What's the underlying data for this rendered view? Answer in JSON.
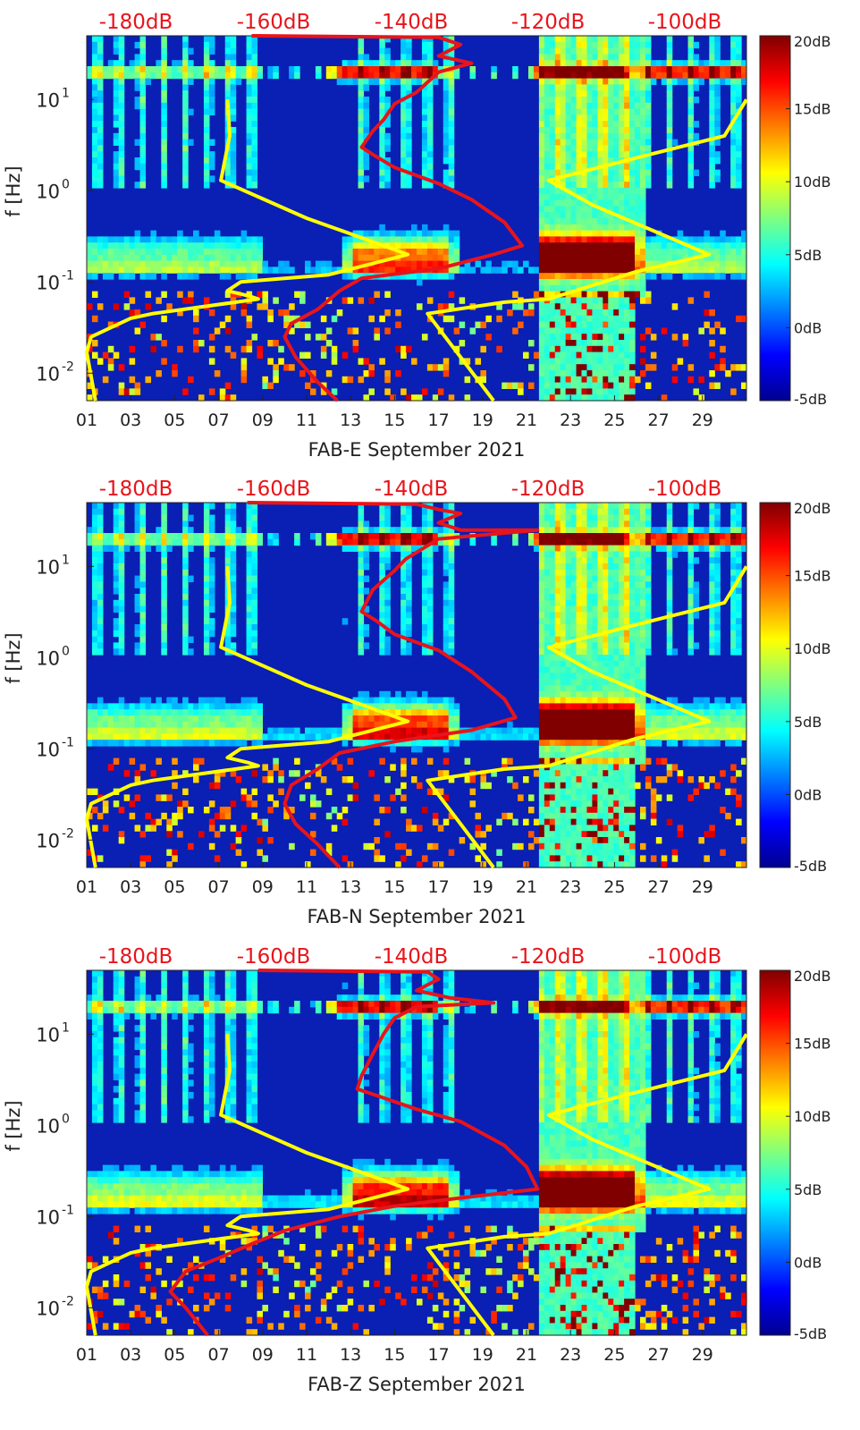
{
  "chart_data": [
    {
      "type": "heatmap",
      "station": "FAB-E",
      "xlabel": "FAB-E September 2021",
      "ylabel": "f [Hz]",
      "x_ticks": [
        "01",
        "03",
        "05",
        "07",
        "09",
        "11",
        "13",
        "15",
        "17",
        "19",
        "21",
        "23",
        "25",
        "27",
        "29"
      ],
      "y_ticks": [
        "10^-2",
        "10^-1",
        "10^0",
        "10^1"
      ],
      "ylim_hz": [
        0.005,
        50
      ],
      "xlim_day": [
        1,
        31
      ],
      "top_axis_ticks": [
        "-180dB",
        "-160dB",
        "-140dB",
        "-120dB",
        "-100dB"
      ],
      "colorbar_ticks": [
        "20dB",
        "15dB",
        "10dB",
        "5dB",
        "0dB",
        "-5dB"
      ],
      "clim_db": [
        -5,
        20
      ],
      "band_scale": 1.0,
      "series": [
        {
          "name": "yellow reference curve (left)",
          "color": "#ffff00",
          "points_day_hz": [
            [
              7.4,
              10
            ],
            [
              7.5,
              4
            ],
            [
              7.1,
              1.3
            ],
            [
              11,
              0.5
            ],
            [
              14.5,
              0.25
            ],
            [
              15.6,
              0.2
            ],
            [
              12,
              0.12
            ],
            [
              8,
              0.1
            ],
            [
              7.4,
              0.08
            ],
            [
              8.4,
              0.07
            ],
            [
              8.8,
              0.065
            ],
            [
              4,
              0.045
            ],
            [
              3,
              0.04
            ],
            [
              1.2,
              0.025
            ],
            [
              1.0,
              0.017
            ],
            [
              1.4,
              0.005
            ]
          ]
        },
        {
          "name": "yellow reference curve (right)",
          "color": "#ffff00",
          "points_day_hz": [
            [
              31,
              10
            ],
            [
              30,
              4
            ],
            [
              26,
              2.3
            ],
            [
              22,
              1.3
            ],
            [
              24,
              0.7
            ],
            [
              29.3,
              0.2
            ],
            [
              26,
              0.13
            ],
            [
              22,
              0.065
            ],
            [
              20,
              0.06
            ],
            [
              16.5,
              0.045
            ],
            [
              19.5,
              0.005
            ]
          ]
        },
        {
          "name": "red PSD curve",
          "color": "#e8141b",
          "points_day_hz": [
            [
              8.5,
              50
            ],
            [
              17,
              48
            ],
            [
              18,
              40
            ],
            [
              17,
              30
            ],
            [
              18.5,
              25
            ],
            [
              17,
              20
            ],
            [
              16,
              12
            ],
            [
              15,
              9
            ],
            [
              14.5,
              6
            ],
            [
              14,
              4.5
            ],
            [
              13.5,
              3
            ],
            [
              14,
              2.5
            ],
            [
              15,
              1.8
            ],
            [
              17,
              1.2
            ],
            [
              18.5,
              0.8
            ],
            [
              20,
              0.45
            ],
            [
              20.8,
              0.25
            ],
            [
              19.5,
              0.2
            ],
            [
              17,
              0.14
            ],
            [
              13.5,
              0.11
            ],
            [
              12.5,
              0.08
            ],
            [
              11.5,
              0.05
            ],
            [
              10.3,
              0.035
            ],
            [
              10,
              0.025
            ],
            [
              10.5,
              0.015
            ],
            [
              11.5,
              0.008
            ],
            [
              12.4,
              0.005
            ]
          ]
        }
      ]
    },
    {
      "type": "heatmap",
      "station": "FAB-N",
      "xlabel": "FAB-N September 2021",
      "ylabel": "f [Hz]",
      "x_ticks": [
        "01",
        "03",
        "05",
        "07",
        "09",
        "11",
        "13",
        "15",
        "17",
        "19",
        "21",
        "23",
        "25",
        "27",
        "29"
      ],
      "y_ticks": [
        "10^-2",
        "10^-1",
        "10^0",
        "10^1"
      ],
      "ylim_hz": [
        0.005,
        50
      ],
      "xlim_day": [
        1,
        31
      ],
      "top_axis_ticks": [
        "-180dB",
        "-160dB",
        "-140dB",
        "-120dB",
        "-100dB"
      ],
      "colorbar_ticks": [
        "20dB",
        "15dB",
        "10dB",
        "5dB",
        "0dB",
        "-5dB"
      ],
      "clim_db": [
        -5,
        20
      ],
      "band_scale": 1.1,
      "series": [
        {
          "name": "yellow reference curve (left)",
          "color": "#ffff00",
          "points_day_hz": [
            [
              7.4,
              10
            ],
            [
              7.5,
              4
            ],
            [
              7.1,
              1.3
            ],
            [
              11,
              0.5
            ],
            [
              14.5,
              0.25
            ],
            [
              15.6,
              0.2
            ],
            [
              12,
              0.12
            ],
            [
              8,
              0.1
            ],
            [
              7.4,
              0.08
            ],
            [
              8.4,
              0.07
            ],
            [
              8.8,
              0.065
            ],
            [
              4,
              0.045
            ],
            [
              3,
              0.04
            ],
            [
              1.2,
              0.025
            ],
            [
              1.0,
              0.017
            ],
            [
              1.4,
              0.005
            ]
          ]
        },
        {
          "name": "yellow reference curve (right)",
          "color": "#ffff00",
          "points_day_hz": [
            [
              31,
              10
            ],
            [
              30,
              4
            ],
            [
              26,
              2.3
            ],
            [
              22,
              1.3
            ],
            [
              24,
              0.7
            ],
            [
              29.3,
              0.2
            ],
            [
              26,
              0.13
            ],
            [
              22,
              0.065
            ],
            [
              20,
              0.06
            ],
            [
              16.5,
              0.045
            ],
            [
              19.5,
              0.005
            ]
          ]
        },
        {
          "name": "red PSD curve",
          "color": "#e8141b",
          "points_day_hz": [
            [
              8.3,
              50
            ],
            [
              16,
              48
            ],
            [
              17,
              42
            ],
            [
              18,
              38
            ],
            [
              17,
              30
            ],
            [
              18,
              25
            ],
            [
              21.5,
              25
            ],
            [
              17,
              20
            ],
            [
              15.5,
              12
            ],
            [
              15,
              9
            ],
            [
              14,
              5.5
            ],
            [
              13.5,
              3.2
            ],
            [
              14.2,
              2.5
            ],
            [
              15,
              1.8
            ],
            [
              17,
              1.2
            ],
            [
              18.5,
              0.7
            ],
            [
              20,
              0.35
            ],
            [
              20.5,
              0.22
            ],
            [
              18.5,
              0.16
            ],
            [
              15,
              0.12
            ],
            [
              12.5,
              0.09
            ],
            [
              11.5,
              0.06
            ],
            [
              10.3,
              0.04
            ],
            [
              10,
              0.025
            ],
            [
              10.5,
              0.015
            ],
            [
              11.5,
              0.009
            ],
            [
              12.5,
              0.005
            ]
          ]
        }
      ]
    },
    {
      "type": "heatmap",
      "station": "FAB-Z",
      "xlabel": "FAB-Z September 2021",
      "ylabel": "f [Hz]",
      "x_ticks": [
        "01",
        "03",
        "05",
        "07",
        "09",
        "11",
        "13",
        "15",
        "17",
        "19",
        "21",
        "23",
        "25",
        "27",
        "29"
      ],
      "y_ticks": [
        "10^-2",
        "10^-1",
        "10^0",
        "10^1"
      ],
      "ylim_hz": [
        0.005,
        50
      ],
      "xlim_day": [
        1,
        31
      ],
      "top_axis_ticks": [
        "-180dB",
        "-160dB",
        "-140dB",
        "-120dB",
        "-100dB"
      ],
      "colorbar_ticks": [
        "20dB",
        "15dB",
        "10dB",
        "5dB",
        "0dB",
        "-5dB"
      ],
      "clim_db": [
        -5,
        20
      ],
      "band_scale": 1.15,
      "series": [
        {
          "name": "yellow reference curve (left)",
          "color": "#ffff00",
          "points_day_hz": [
            [
              7.4,
              10
            ],
            [
              7.5,
              4
            ],
            [
              7.1,
              1.3
            ],
            [
              11,
              0.5
            ],
            [
              14.5,
              0.25
            ],
            [
              15.6,
              0.2
            ],
            [
              12,
              0.12
            ],
            [
              8,
              0.1
            ],
            [
              7.4,
              0.08
            ],
            [
              8.4,
              0.07
            ],
            [
              8.8,
              0.065
            ],
            [
              4,
              0.045
            ],
            [
              3,
              0.04
            ],
            [
              1.2,
              0.025
            ],
            [
              1.0,
              0.017
            ],
            [
              1.4,
              0.005
            ]
          ]
        },
        {
          "name": "yellow reference curve (right)",
          "color": "#ffff00",
          "points_day_hz": [
            [
              31,
              10
            ],
            [
              30,
              4
            ],
            [
              26,
              2.3
            ],
            [
              22,
              1.3
            ],
            [
              24,
              0.7
            ],
            [
              29.3,
              0.2
            ],
            [
              26,
              0.13
            ],
            [
              22,
              0.065
            ],
            [
              20,
              0.06
            ],
            [
              16.5,
              0.045
            ],
            [
              19.5,
              0.005
            ]
          ]
        },
        {
          "name": "red PSD curve",
          "color": "#e8141b",
          "points_day_hz": [
            [
              8.8,
              50
            ],
            [
              16.5,
              48
            ],
            [
              17,
              40
            ],
            [
              16,
              30
            ],
            [
              17.5,
              25
            ],
            [
              19.5,
              22
            ],
            [
              16,
              20
            ],
            [
              15,
              15
            ],
            [
              14.5,
              10
            ],
            [
              14,
              6
            ],
            [
              13.5,
              3.5
            ],
            [
              13.3,
              2.5
            ],
            [
              14.5,
              2
            ],
            [
              16,
              1.5
            ],
            [
              18,
              1.1
            ],
            [
              20,
              0.6
            ],
            [
              21,
              0.35
            ],
            [
              21.5,
              0.2
            ],
            [
              18,
              0.16
            ],
            [
              15,
              0.13
            ],
            [
              12.5,
              0.1
            ],
            [
              10,
              0.07
            ],
            [
              8.5,
              0.05
            ],
            [
              7,
              0.035
            ],
            [
              5.5,
              0.025
            ],
            [
              4.8,
              0.015
            ],
            [
              5.5,
              0.01
            ],
            [
              6.5,
              0.005
            ]
          ]
        }
      ]
    }
  ]
}
